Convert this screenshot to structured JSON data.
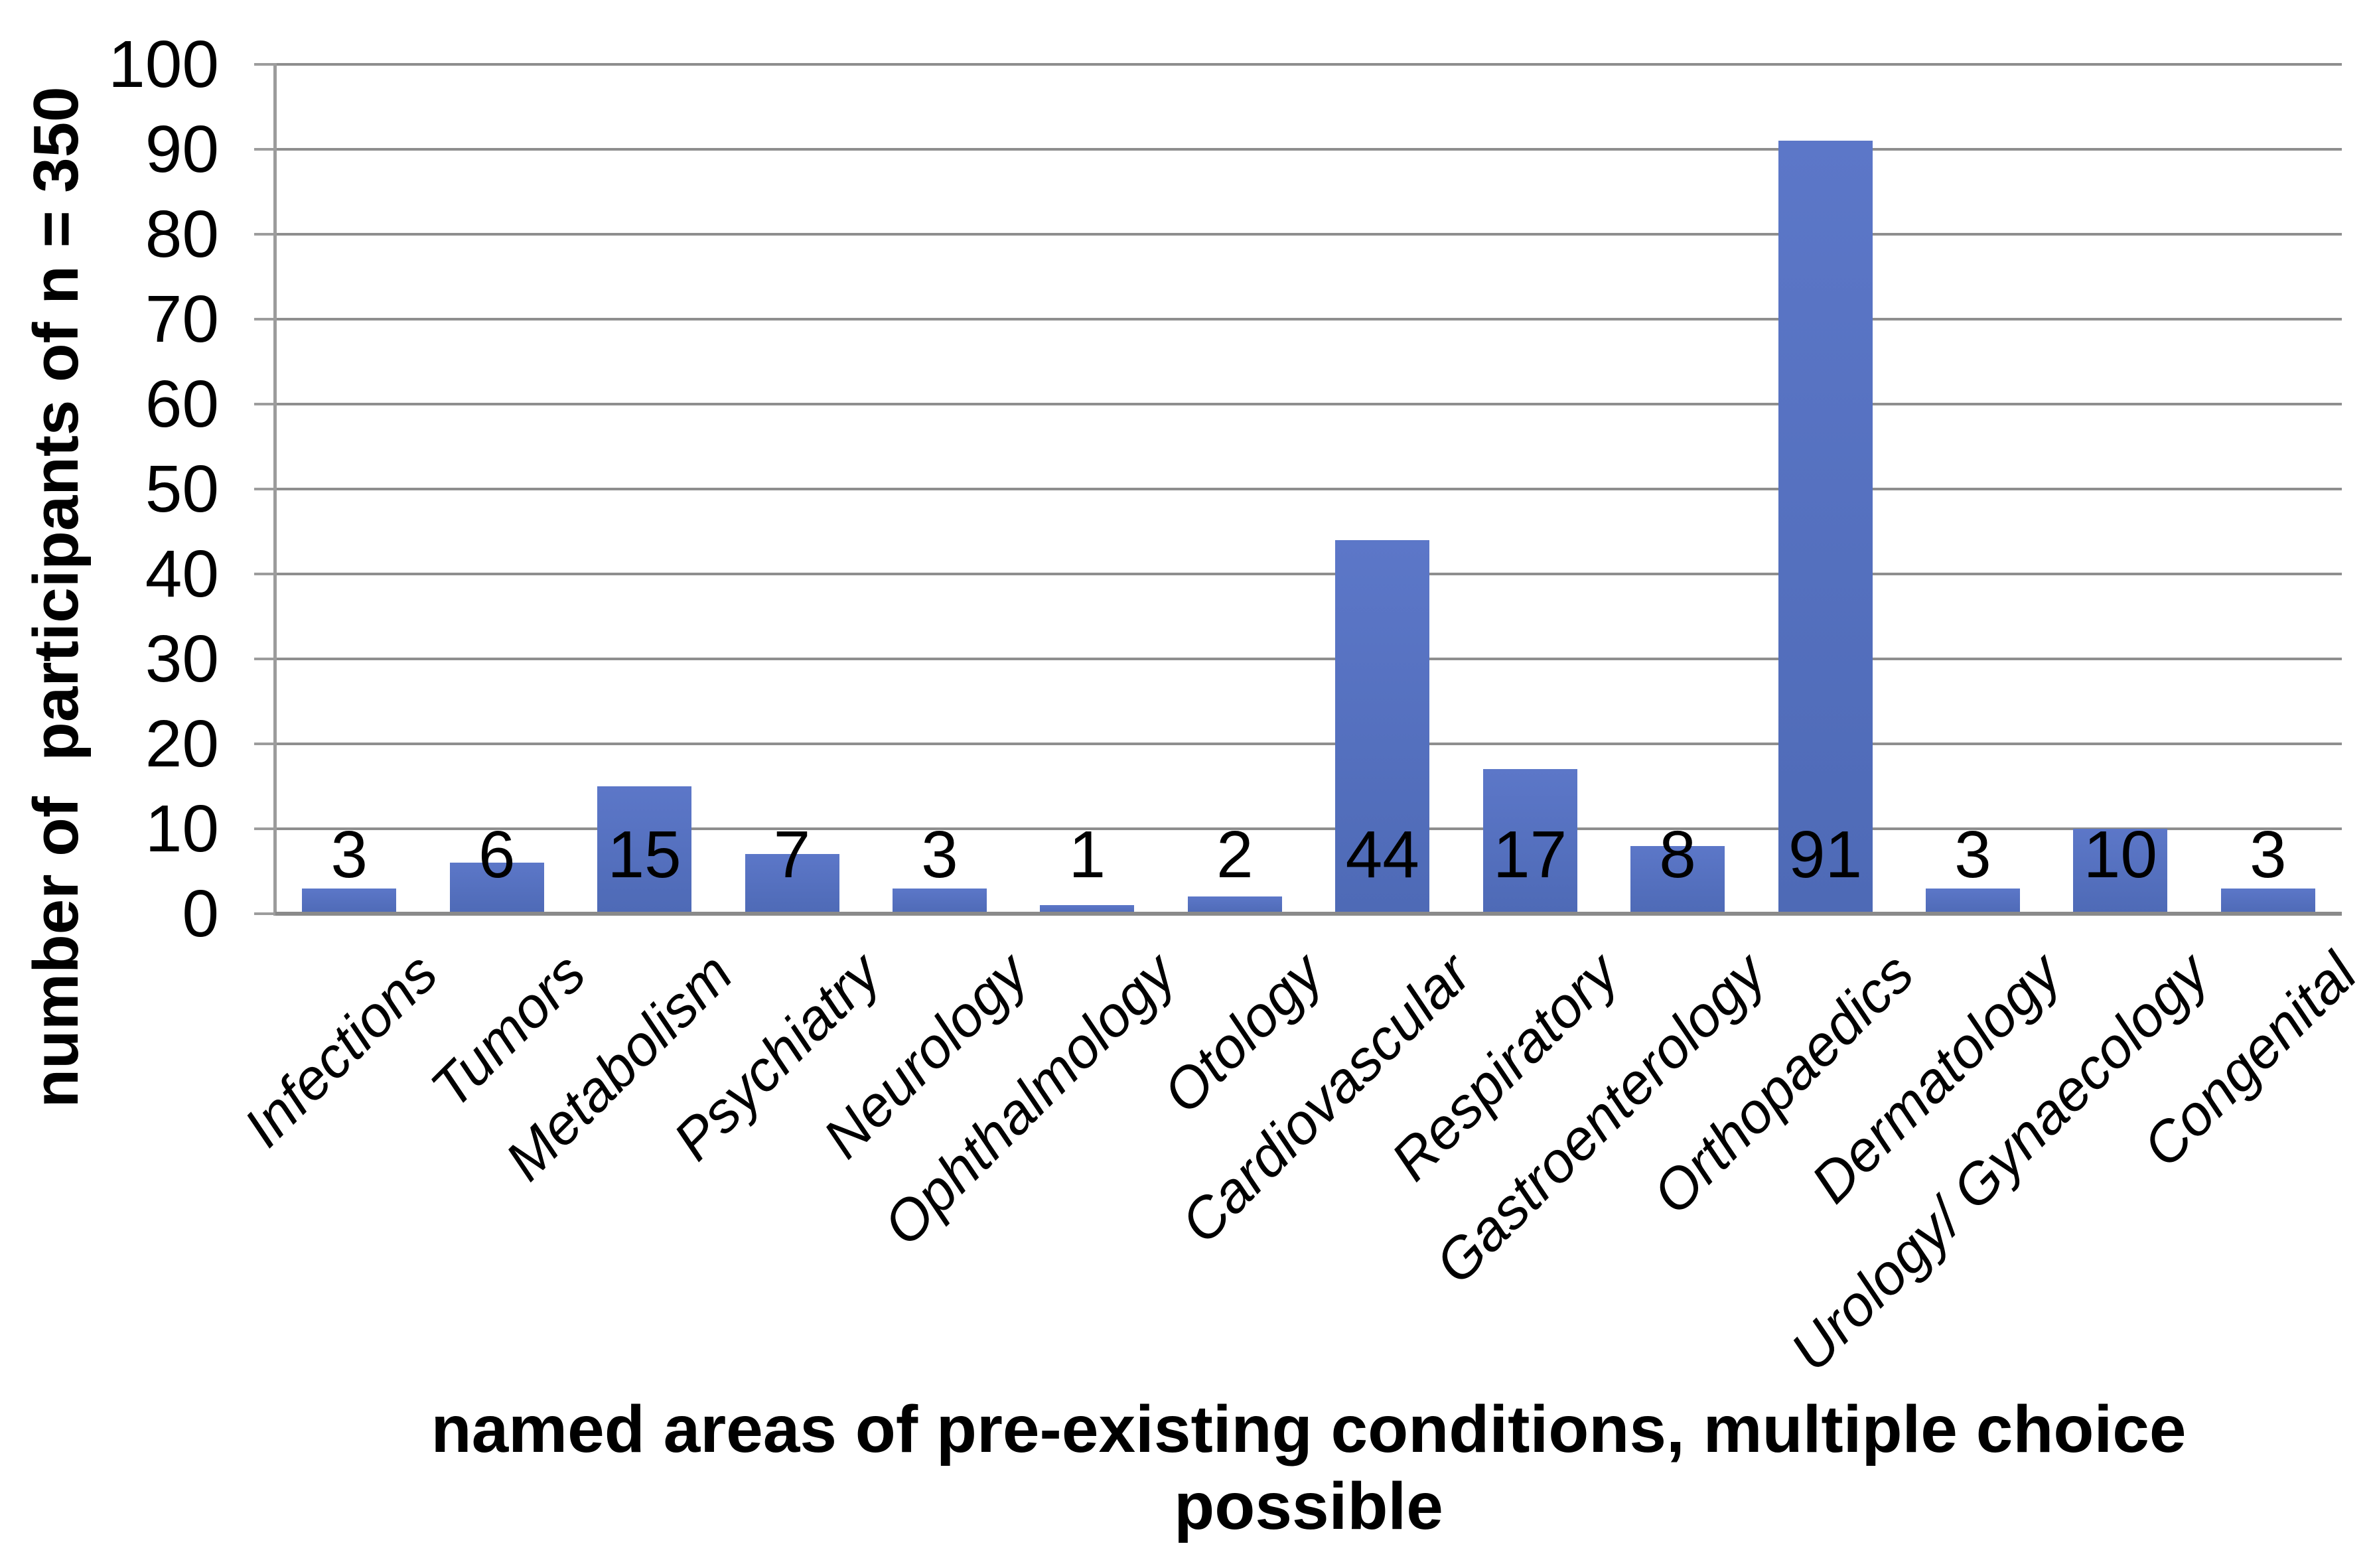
{
  "page": {
    "background": "#ffffff"
  },
  "chart_data": {
    "type": "bar",
    "title": "",
    "categories": [
      "Infections",
      "Tumors",
      "Metabolism",
      "Psychiatry",
      "Neurology",
      "Ophthalmology",
      "Otology",
      "Cardiovascular",
      "Respiratory",
      "Gastroenterology",
      "Orthopaedics",
      "Dermatology",
      "Urology/ Gynaecology",
      "Congenital"
    ],
    "values": [
      3,
      6,
      15,
      7,
      3,
      1,
      2,
      44,
      17,
      8,
      91,
      3,
      10,
      3
    ],
    "xlabel": "named areas of pre-existing conditions, multiple choice possible",
    "xlabel_lines": [
      "named areas of pre-existing conditions, multiple choice",
      "possible"
    ],
    "ylabel": "number of  participants of n = 350",
    "ylim": [
      0,
      100
    ],
    "yticks": [
      0,
      10,
      20,
      30,
      40,
      50,
      60,
      70,
      80,
      90,
      100
    ],
    "grid": "horizontal",
    "legend": "none",
    "category_label_style": "italic, rotated 45 degrees",
    "data_label_position": "fixed height just above x-axis, centered on bar",
    "colors": {
      "bar_top": "#5c77c8",
      "bar_bottom": "#4e6ab6",
      "gridline": "#8e8e8e",
      "x_axis": "#8a8a8a",
      "y_axis": "#9c9c9c",
      "text": "#000000"
    }
  }
}
